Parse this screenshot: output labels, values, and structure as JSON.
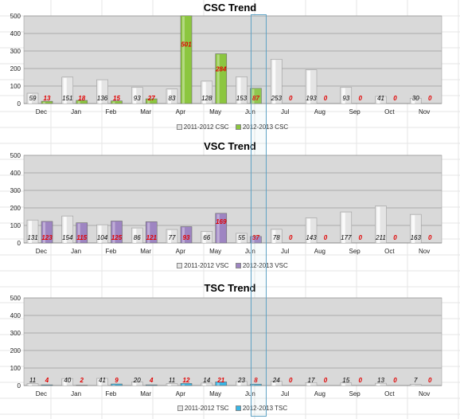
{
  "chart_data": [
    {
      "type": "bar",
      "title": "CSC Trend",
      "categories": [
        "Dec",
        "Jan",
        "Feb",
        "Mar",
        "Apr",
        "May",
        "Jun",
        "Jul",
        "Aug",
        "Sep",
        "Oct",
        "Nov"
      ],
      "ylim": [
        0,
        500
      ],
      "yticks": [
        0,
        100,
        200,
        300,
        400,
        500
      ],
      "grid": true,
      "legend_position": "bottom",
      "series": [
        {
          "name": "2011-2012 CSC",
          "values": [
            59,
            151,
            136,
            93,
            83,
            128,
            153,
            253,
            193,
            93,
            41,
            30
          ]
        },
        {
          "name": "2012-2013 CSC",
          "values": [
            13,
            18,
            15,
            27,
            501,
            284,
            87,
            0,
            0,
            0,
            0,
            0
          ]
        }
      ]
    },
    {
      "type": "bar",
      "title": "VSC Trend",
      "categories": [
        "Dec",
        "Jan",
        "Feb",
        "Mar",
        "Apr",
        "May",
        "Jun",
        "Jul",
        "Aug",
        "Sep",
        "Oct",
        "Nov"
      ],
      "ylim": [
        0,
        500
      ],
      "yticks": [
        0,
        100,
        200,
        300,
        400,
        500
      ],
      "grid": true,
      "legend_position": "bottom",
      "series": [
        {
          "name": "2011-2012 VSC",
          "values": [
            131,
            154,
            104,
            86,
            77,
            66,
            55,
            78,
            143,
            177,
            211,
            163
          ]
        },
        {
          "name": "2012-2013 VSC",
          "values": [
            123,
            115,
            125,
            121,
            93,
            169,
            37,
            0,
            0,
            0,
            0,
            0
          ]
        }
      ]
    },
    {
      "type": "bar",
      "title": "TSC Trend",
      "categories": [
        "Dec",
        "Jan",
        "Feb",
        "Mar",
        "Apr",
        "May",
        "Jun",
        "Jul",
        "Aug",
        "Sep",
        "Oct",
        "Nov"
      ],
      "ylim": [
        0,
        500
      ],
      "yticks": [
        0,
        100,
        200,
        300,
        400,
        500
      ],
      "grid": true,
      "legend_position": "bottom",
      "series": [
        {
          "name": "2011-2012 TSC",
          "values": [
            11,
            40,
            41,
            20,
            11,
            14,
            23,
            24,
            17,
            15,
            13,
            7
          ]
        },
        {
          "name": "2012-2013 TSC",
          "values": [
            4,
            2,
            9,
            4,
            12,
            21,
            8,
            0,
            0,
            0,
            0,
            0
          ]
        }
      ]
    }
  ],
  "colors": {
    "series1": "#e4e4e4",
    "series2": [
      "#8cc63f",
      "#9e85c2",
      "#38b6e6"
    ],
    "plot_bg": "#d9d9d9",
    "label_red": "#e00000",
    "label_black": "#000000",
    "selection": "#5ea2c4"
  }
}
